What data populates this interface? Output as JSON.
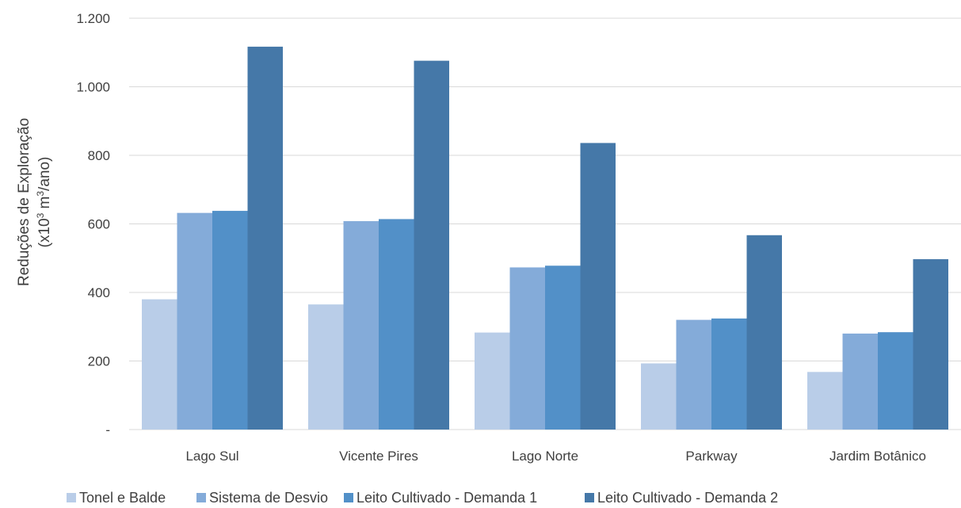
{
  "chart_data": {
    "type": "bar",
    "categories": [
      "Lago Sul",
      "Vicente Pires",
      "Lago Norte",
      "Parkway",
      "Jardim Botânico"
    ],
    "series": [
      {
        "name": "Tonel e Balde",
        "values": [
          380,
          365,
          283,
          193,
          168
        ],
        "color": "#b9cde8"
      },
      {
        "name": "Sistema de Desvio",
        "values": [
          632,
          608,
          473,
          320,
          280
        ],
        "color": "#84abd9"
      },
      {
        "name": "Leito Cultivado - Demanda 1",
        "values": [
          638,
          614,
          478,
          324,
          284
        ],
        "color": "#5290c8"
      },
      {
        "name": "Leito Cultivado - Demanda 2",
        "values": [
          1117,
          1076,
          836,
          567,
          497
        ],
        "color": "#4578a8"
      }
    ],
    "ylabel_line1": "Reduções de Exploração",
    "ylabel_line2_pre": "(x10",
    "ylabel_line2_sup1": "3",
    "ylabel_line2_mid": " m",
    "ylabel_line2_sup2": "3",
    "ylabel_line2_post": "/ano)",
    "ylim": [
      0,
      1200
    ],
    "yticks": [
      0,
      200,
      400,
      600,
      800,
      1000,
      1200
    ],
    "ytick_labels": [
      "-",
      "200",
      "400",
      "600",
      "800",
      "1.000",
      "1.200"
    ],
    "grid": true,
    "legend_position": "bottom"
  }
}
